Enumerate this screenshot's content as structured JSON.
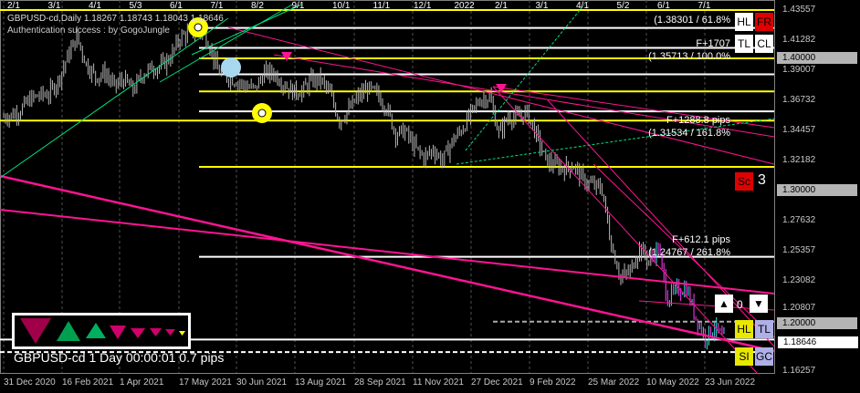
{
  "header": {
    "symbol_line": "GBPUSD-cd,Daily  1.18267 1.18743 1.18043 1.18646",
    "auth": "Authentication success : by GogoJungle"
  },
  "month_markers": [
    "2/1",
    "3/1",
    "4/1",
    "5/3",
    "6/1",
    "7/1",
    "8/2",
    "9/1",
    "10/1",
    "11/1",
    "12/1",
    "2022",
    "2/1",
    "3/1",
    "4/1",
    "5/2",
    "6/1",
    "7/1"
  ],
  "fibo_labels": {
    "l1": "(1.38301 / 61.8%",
    "l2": "F+1707",
    "l3": "(1.35713 / 100.0%",
    "l4": "F+1288.8 pips",
    "l5": "(1.31534 / 161.8%",
    "l6": "F+612.1 pips",
    "l7": "(1.24767 / 261.8%"
  },
  "buttons": {
    "hl": "HL",
    "fr": "FR",
    "tl": "TL",
    "cl": "CL",
    "sc": "Sc",
    "sc_count": "3",
    "counter": "0",
    "hl2": "HL",
    "tl2": "TL",
    "si": "SI",
    "gc": "GC"
  },
  "status": "GBPUSD-cd  1 Day  00:00:01  0.7 pips",
  "colors": {
    "bull_bar": "#c0c0c0",
    "fibo": "#ffff00",
    "trend": "#ff1493",
    "green": "#00c060",
    "grid": "#646464"
  },
  "chart_data": {
    "type": "candlestick",
    "symbol": "GBPUSD-cd",
    "timeframe": "Daily",
    "last": {
      "open": 1.18267,
      "high": 1.18743,
      "low": 1.18043,
      "close": 1.18646
    },
    "y_ticks": [
      "1.43557",
      "1.41282",
      "1.39007",
      "1.36732",
      "1.34457",
      "1.32182",
      "1.30000",
      "1.27632",
      "1.25357",
      "1.23082",
      "1.20807",
      "1.20000",
      "1.18646",
      "1.16257"
    ],
    "x_ticks": [
      "31 Dec 2020",
      "16 Feb 2021",
      "1 Apr 2021",
      "17 May 2021",
      "30 Jun 2021",
      "13 Aug 2021",
      "28 Sep 2021",
      "11 Nov 2021",
      "27 Dec 2021",
      "9 Feb 2022",
      "25 Mar 2022",
      "10 May 2022",
      "23 Jun 2022"
    ],
    "ylim": [
      1.16257,
      1.43557
    ],
    "weekly_close_approx": [
      1.356,
      1.36,
      1.368,
      1.371,
      1.372,
      1.382,
      1.4,
      1.415,
      1.395,
      1.385,
      1.388,
      1.378,
      1.383,
      1.375,
      1.387,
      1.392,
      1.393,
      1.4,
      1.415,
      1.418,
      1.42,
      1.412,
      1.39,
      1.385,
      1.382,
      1.378,
      1.376,
      1.388,
      1.388,
      1.38,
      1.374,
      1.374,
      1.382,
      1.383,
      1.372,
      1.352,
      1.36,
      1.37,
      1.376,
      1.372,
      1.362,
      1.342,
      1.344,
      1.332,
      1.324,
      1.33,
      1.322,
      1.336,
      1.345,
      1.357,
      1.368,
      1.37,
      1.342,
      1.355,
      1.354,
      1.358,
      1.341,
      1.322,
      1.318,
      1.316,
      1.318,
      1.307,
      1.303,
      1.3,
      1.258,
      1.233,
      1.238,
      1.256,
      1.246,
      1.256,
      1.217,
      1.224,
      1.225,
      1.203,
      1.188,
      1.196,
      1.186
    ],
    "horizontal_levels": [
      1.43557,
      1.422,
      1.407,
      1.399,
      1.387,
      1.374,
      1.359,
      1.352,
      1.317,
      1.249,
      1.2,
      1.18646,
      1.177
    ]
  }
}
